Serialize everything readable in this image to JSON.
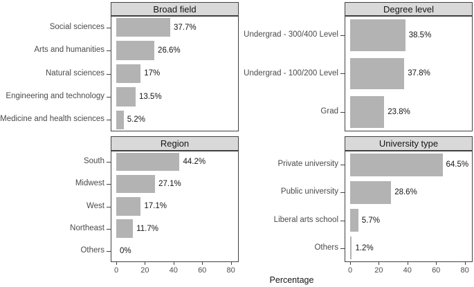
{
  "chart_data": [
    {
      "type": "bar",
      "orientation": "horizontal",
      "title": "Broad field",
      "categories": [
        "Social sciences",
        "Arts and humanities",
        "Natural sciences",
        "Engineering and technology",
        "Medicine and health sciences"
      ],
      "values": [
        37.7,
        26.6,
        17,
        13.5,
        5.2
      ],
      "value_labels": [
        "37.7%",
        "26.6%",
        "17%",
        "13.5%",
        "5.2%"
      ]
    },
    {
      "type": "bar",
      "orientation": "horizontal",
      "title": "Degree level",
      "categories": [
        "Undergrad - 300/400 Level",
        "Undergrad - 100/200 Level",
        "Grad"
      ],
      "values": [
        38.5,
        37.8,
        23.8
      ],
      "value_labels": [
        "38.5%",
        "37.8%",
        "23.8%"
      ]
    },
    {
      "type": "bar",
      "orientation": "horizontal",
      "title": "Region",
      "categories": [
        "South",
        "Midwest",
        "West",
        "Northeast",
        "Others"
      ],
      "values": [
        44.2,
        27.1,
        17.1,
        11.7,
        0
      ],
      "value_labels": [
        "44.2%",
        "27.1%",
        "17.1%",
        "11.7%",
        "0%"
      ]
    },
    {
      "type": "bar",
      "orientation": "horizontal",
      "title": "University type",
      "categories": [
        "Private university",
        "Public university",
        "Liberal arts school",
        "Others"
      ],
      "values": [
        64.5,
        28.6,
        5.7,
        1.2
      ],
      "value_labels": [
        "64.5%",
        "28.6%",
        "5.7%",
        "1.2%"
      ]
    }
  ],
  "axis": {
    "xlabel": "Percentage",
    "ticks": [
      "0",
      "20",
      "40",
      "60",
      "80"
    ],
    "tick_values": [
      0,
      20,
      40,
      60,
      80
    ],
    "xlim": [
      0,
      85.5
    ],
    "grid": "off",
    "legend": "none"
  },
  "colors": {
    "bar_fill": "#b3b3b3",
    "strip_bg": "#d9d9d9",
    "panel_border": "#404040",
    "axis_text": "#4d4d4d",
    "label_text": "#141414",
    "background": "#ffffff"
  }
}
